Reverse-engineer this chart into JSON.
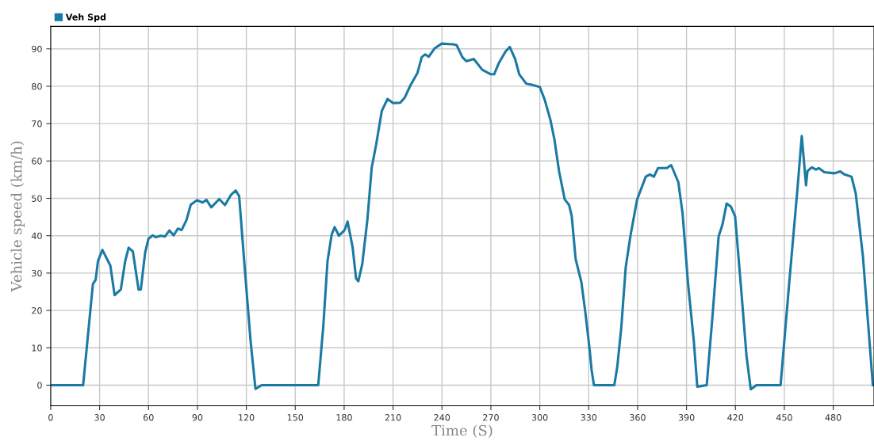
{
  "chart_data": {
    "type": "line",
    "xlabel": "Time (S)",
    "ylabel": "Vehicle speed (km/h)",
    "xlim": [
      0,
      505
    ],
    "xticks": [
      0,
      30,
      60,
      90,
      120,
      150,
      180,
      210,
      240,
      270,
      300,
      330,
      360,
      390,
      420,
      450,
      480
    ],
    "ylim": [
      -5.5,
      96
    ],
    "yticks": [
      0,
      10,
      20,
      30,
      40,
      50,
      60,
      70,
      80,
      90
    ],
    "grid": true,
    "legend": "top left",
    "marker": "none",
    "line_style": "solid",
    "series": [
      {
        "name": "Veh Spd",
        "color": "#1a7aa3",
        "x": [
          0,
          19.9,
          25.9,
          27.6,
          29,
          31.7,
          36.6,
          39.2,
          43,
          45.7,
          47.8,
          50.4,
          53.9,
          55.3,
          57.9,
          60,
          62.6,
          64.5,
          67.5,
          70.1,
          72.8,
          75.4,
          78,
          80.3,
          83.3,
          85.9,
          89.7,
          93.2,
          95.5,
          98.5,
          103.4,
          106.9,
          110.7,
          113.5,
          115.6,
          119.1,
          122.6,
          125.6,
          128.7,
          129.6,
          164.1,
          167.2,
          169.8,
          172.4,
          174.2,
          176.8,
          180.3,
          182.1,
          185.2,
          187.3,
          188.7,
          191.1,
          194.3,
          196.9,
          199.6,
          203.1,
          206.6,
          210.1,
          214.4,
          217.1,
          220.6,
          225,
          227.6,
          229.7,
          231.9,
          235.4,
          239.8,
          247,
          249,
          252.5,
          255,
          259.5,
          264.7,
          270,
          272,
          275,
          279,
          281.6,
          284.8,
          287.4,
          291.7,
          295,
          300,
          303,
          306.5,
          309,
          311.8,
          315.3,
          318,
          319.6,
          322,
          325.5,
          328,
          330.6,
          331.8,
          333.2,
          345.7,
          347.5,
          350,
          352.7,
          355.7,
          359.7,
          365,
          367.5,
          370,
          372.5,
          378,
          380.6,
          385,
          387.6,
          391,
          394.5,
          396.6,
          402.4,
          405.8,
          409.7,
          412,
          414.6,
          417.2,
          419.8,
          423.3,
          426.8,
          429.4,
          432.9,
          447.7,
          452.9,
          458.1,
          460.7,
          463.3,
          464.2,
          466.8,
          469.4,
          471.1,
          474.6,
          480.7,
          484.3,
          486.8,
          491.2,
          493.8,
          498.2,
          504.3
        ],
        "values": [
          0,
          0,
          27.1,
          28.2,
          33.2,
          36.2,
          32,
          24.1,
          25.6,
          33.2,
          36.8,
          35.8,
          25.6,
          25.6,
          35.4,
          39.2,
          40.1,
          39.6,
          40,
          39.8,
          41.4,
          40.1,
          41.9,
          41.5,
          44.2,
          48.3,
          49.5,
          48.9,
          49.6,
          47.6,
          49.8,
          48.2,
          51,
          52.1,
          50.6,
          30.9,
          11.9,
          -1,
          -0.2,
          0,
          0,
          15.7,
          33.2,
          40.4,
          42.3,
          40,
          41.5,
          43.8,
          36.9,
          28.6,
          27.8,
          32.4,
          44.5,
          58.2,
          64.3,
          73.4,
          76.6,
          75.5,
          75.6,
          76.9,
          80.2,
          83.6,
          87.8,
          88.5,
          87.9,
          90.1,
          91.4,
          91.2,
          91,
          87.8,
          86.7,
          87.3,
          84.4,
          83.2,
          83.2,
          86.3,
          89.3,
          90.5,
          87.4,
          83.2,
          80.7,
          80.4,
          79.8,
          76.4,
          71,
          65.7,
          57.3,
          49.7,
          48.2,
          45.2,
          33.7,
          27.6,
          19.3,
          9.4,
          4,
          0,
          0,
          4.8,
          15.5,
          31.5,
          40.2,
          49.7,
          55.8,
          56.4,
          55.8,
          58.1,
          58.1,
          58.9,
          54.3,
          45.9,
          26.9,
          11.7,
          -0.4,
          0,
          17.7,
          39.8,
          42.9,
          48.6,
          47.8,
          45.2,
          26.9,
          7.8,
          -1.1,
          0,
          0,
          26.9,
          52.8,
          66.7,
          53.5,
          57.3,
          58.3,
          57.7,
          58.1,
          57,
          56.7,
          57.2,
          56.4,
          55.8,
          51.3,
          34.5,
          0
        ]
      }
    ]
  }
}
